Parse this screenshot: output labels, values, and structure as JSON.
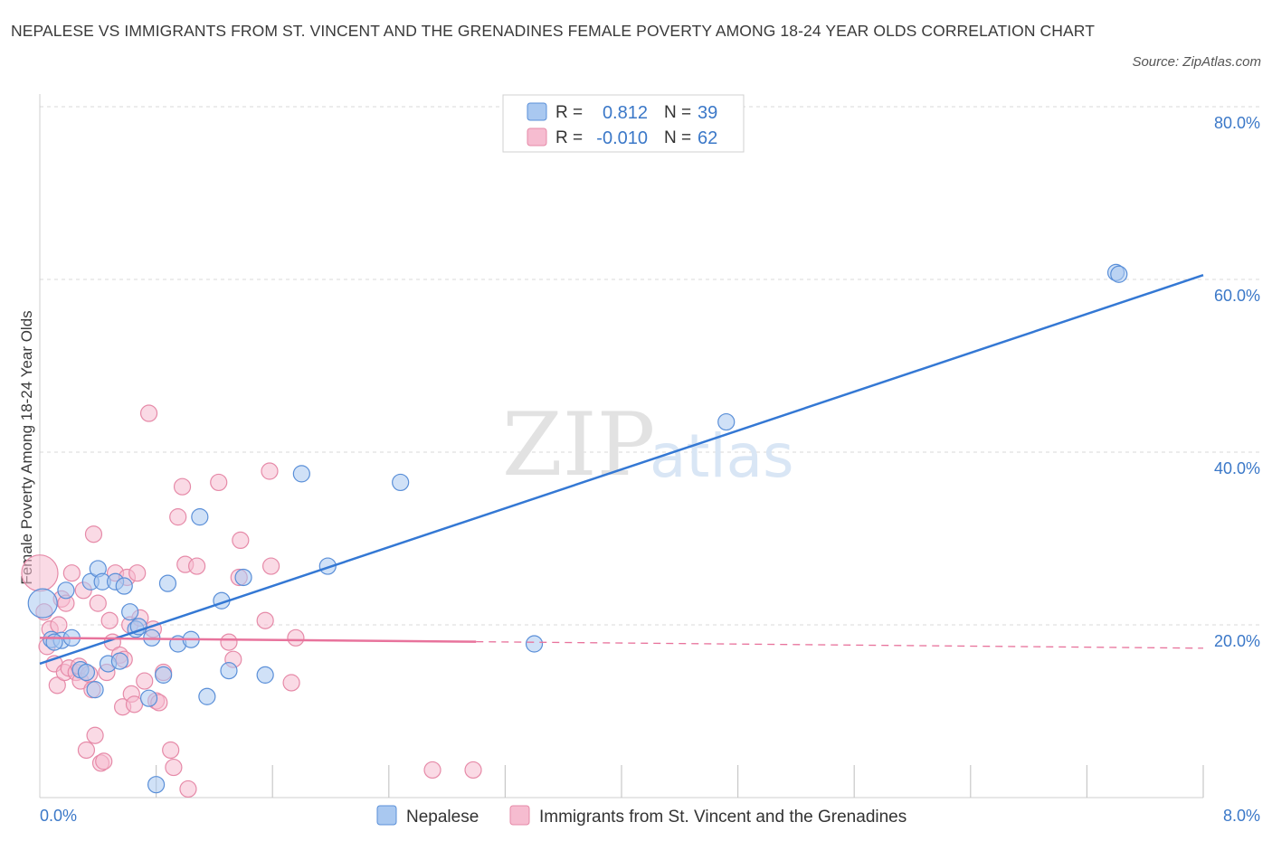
{
  "title": "NEPALESE VS IMMIGRANTS FROM ST. VINCENT AND THE GRENADINES FEMALE POVERTY AMONG 18-24 YEAR OLDS CORRELATION CHART",
  "source": "Source: ZipAtlas.com",
  "watermark": {
    "zip": "ZIP",
    "atlas": "atlas"
  },
  "colors": {
    "blue_fill": "#a9c8f0",
    "blue_stroke": "#5a8fd8",
    "blue_line": "#3478d4",
    "pink_fill": "#f6bcd0",
    "pink_stroke": "#e68aa8",
    "pink_line": "#e8739c",
    "grid": "#d8d8d8",
    "axis_text": "#3b78c8"
  },
  "legend": {
    "r_label": "R =",
    "n_label": "N =",
    "series": [
      {
        "r": "0.812",
        "n": "39"
      },
      {
        "r": "-0.010",
        "n": "62"
      }
    ]
  },
  "chart_data": {
    "type": "scatter",
    "title": "NEPALESE VS IMMIGRANTS FROM ST. VINCENT AND THE GRENADINES FEMALE POVERTY AMONG 18-24 YEAR OLDS CORRELATION CHART",
    "xlabel": "",
    "ylabel": "Female Poverty Among 18-24 Year Olds",
    "xlim": [
      0,
      8
    ],
    "ylim": [
      0,
      80
    ],
    "x_tick_labels": [
      "0.0%",
      "8.0%"
    ],
    "y_ticks": [
      20,
      40,
      60,
      80
    ],
    "y_tick_labels": [
      "20.0%",
      "40.0%",
      "60.0%",
      "80.0%"
    ],
    "grid": true,
    "legend_position": "top-center",
    "series": [
      {
        "name": "Nepalese",
        "color": "blue",
        "trend": {
          "x": [
            0.0,
            8.0
          ],
          "y": [
            15.5,
            60.5
          ],
          "dashed_from": null
        },
        "points": [
          {
            "x": 0.02,
            "y": 22.5,
            "s": 16
          },
          {
            "x": 0.08,
            "y": 18.3,
            "s": 9
          },
          {
            "x": 0.15,
            "y": 18.2,
            "s": 9
          },
          {
            "x": 0.18,
            "y": 24.0,
            "s": 9
          },
          {
            "x": 0.22,
            "y": 18.5,
            "s": 9
          },
          {
            "x": 0.28,
            "y": 14.8,
            "s": 9
          },
          {
            "x": 0.32,
            "y": 14.5,
            "s": 9
          },
          {
            "x": 0.35,
            "y": 25.0,
            "s": 9
          },
          {
            "x": 0.38,
            "y": 12.5,
            "s": 9
          },
          {
            "x": 0.4,
            "y": 26.5,
            "s": 9
          },
          {
            "x": 0.43,
            "y": 25.0,
            "s": 9
          },
          {
            "x": 0.47,
            "y": 15.5,
            "s": 9
          },
          {
            "x": 0.52,
            "y": 25.0,
            "s": 9
          },
          {
            "x": 0.55,
            "y": 15.8,
            "s": 9
          },
          {
            "x": 0.58,
            "y": 24.5,
            "s": 9
          },
          {
            "x": 0.62,
            "y": 21.5,
            "s": 9
          },
          {
            "x": 0.66,
            "y": 19.5,
            "s": 9
          },
          {
            "x": 0.68,
            "y": 19.8,
            "s": 9
          },
          {
            "x": 0.75,
            "y": 11.5,
            "s": 9
          },
          {
            "x": 0.77,
            "y": 18.5,
            "s": 9
          },
          {
            "x": 0.8,
            "y": 1.5,
            "s": 9
          },
          {
            "x": 0.85,
            "y": 14.2,
            "s": 9
          },
          {
            "x": 0.88,
            "y": 24.8,
            "s": 9
          },
          {
            "x": 0.95,
            "y": 17.8,
            "s": 9
          },
          {
            "x": 1.04,
            "y": 18.3,
            "s": 9
          },
          {
            "x": 1.1,
            "y": 32.5,
            "s": 9
          },
          {
            "x": 1.15,
            "y": 11.7,
            "s": 9
          },
          {
            "x": 1.25,
            "y": 22.8,
            "s": 9
          },
          {
            "x": 1.3,
            "y": 14.7,
            "s": 9
          },
          {
            "x": 1.4,
            "y": 25.5,
            "s": 9
          },
          {
            "x": 1.55,
            "y": 14.2,
            "s": 9
          },
          {
            "x": 1.8,
            "y": 37.5,
            "s": 9
          },
          {
            "x": 1.98,
            "y": 26.8,
            "s": 9
          },
          {
            "x": 2.48,
            "y": 36.5,
            "s": 9
          },
          {
            "x": 3.4,
            "y": 17.8,
            "s": 9
          },
          {
            "x": 4.72,
            "y": 43.5,
            "s": 9
          },
          {
            "x": 7.4,
            "y": 60.8,
            "s": 9
          },
          {
            "x": 7.42,
            "y": 60.6,
            "s": 9
          },
          {
            "x": 0.1,
            "y": 18.0,
            "s": 9
          }
        ]
      },
      {
        "name": "Immigrants from St. Vincent and the Grenadines",
        "color": "pink",
        "trend": {
          "x": [
            0.0,
            8.0
          ],
          "y": [
            18.5,
            17.3
          ],
          "dashed_from": 3.0
        },
        "points": [
          {
            "x": 0.0,
            "y": 26.0,
            "s": 20
          },
          {
            "x": 0.03,
            "y": 21.5,
            "s": 9
          },
          {
            "x": 0.05,
            "y": 17.5,
            "s": 9
          },
          {
            "x": 0.07,
            "y": 19.5,
            "s": 9
          },
          {
            "x": 0.1,
            "y": 15.5,
            "s": 9
          },
          {
            "x": 0.12,
            "y": 13.0,
            "s": 9
          },
          {
            "x": 0.13,
            "y": 20.0,
            "s": 9
          },
          {
            "x": 0.15,
            "y": 23.0,
            "s": 9
          },
          {
            "x": 0.17,
            "y": 14.5,
            "s": 9
          },
          {
            "x": 0.18,
            "y": 22.5,
            "s": 9
          },
          {
            "x": 0.2,
            "y": 15.0,
            "s": 9
          },
          {
            "x": 0.22,
            "y": 26.0,
            "s": 9
          },
          {
            "x": 0.25,
            "y": 14.5,
            "s": 9
          },
          {
            "x": 0.27,
            "y": 15.2,
            "s": 9
          },
          {
            "x": 0.28,
            "y": 13.5,
            "s": 9
          },
          {
            "x": 0.3,
            "y": 24.0,
            "s": 9
          },
          {
            "x": 0.32,
            "y": 5.5,
            "s": 9
          },
          {
            "x": 0.34,
            "y": 14.3,
            "s": 9
          },
          {
            "x": 0.36,
            "y": 12.5,
            "s": 9
          },
          {
            "x": 0.37,
            "y": 30.5,
            "s": 9
          },
          {
            "x": 0.38,
            "y": 7.2,
            "s": 9
          },
          {
            "x": 0.4,
            "y": 22.5,
            "s": 9
          },
          {
            "x": 0.42,
            "y": 4.0,
            "s": 9
          },
          {
            "x": 0.44,
            "y": 4.2,
            "s": 9
          },
          {
            "x": 0.46,
            "y": 14.5,
            "s": 9
          },
          {
            "x": 0.48,
            "y": 20.5,
            "s": 9
          },
          {
            "x": 0.5,
            "y": 18.0,
            "s": 9
          },
          {
            "x": 0.52,
            "y": 26.0,
            "s": 9
          },
          {
            "x": 0.55,
            "y": 16.5,
            "s": 9
          },
          {
            "x": 0.57,
            "y": 10.5,
            "s": 9
          },
          {
            "x": 0.58,
            "y": 16.0,
            "s": 9
          },
          {
            "x": 0.6,
            "y": 25.5,
            "s": 9
          },
          {
            "x": 0.62,
            "y": 20.0,
            "s": 9
          },
          {
            "x": 0.63,
            "y": 12.0,
            "s": 9
          },
          {
            "x": 0.65,
            "y": 10.8,
            "s": 9
          },
          {
            "x": 0.67,
            "y": 26.0,
            "s": 9
          },
          {
            "x": 0.69,
            "y": 20.8,
            "s": 9
          },
          {
            "x": 0.72,
            "y": 13.5,
            "s": 9
          },
          {
            "x": 0.75,
            "y": 44.5,
            "s": 9
          },
          {
            "x": 0.78,
            "y": 19.5,
            "s": 9
          },
          {
            "x": 0.8,
            "y": 11.2,
            "s": 9
          },
          {
            "x": 0.82,
            "y": 11.0,
            "s": 9
          },
          {
            "x": 0.85,
            "y": 14.5,
            "s": 9
          },
          {
            "x": 0.9,
            "y": 5.5,
            "s": 9
          },
          {
            "x": 0.92,
            "y": 3.5,
            "s": 9
          },
          {
            "x": 0.95,
            "y": 32.5,
            "s": 9
          },
          {
            "x": 0.98,
            "y": 36.0,
            "s": 9
          },
          {
            "x": 1.0,
            "y": 27.0,
            "s": 9
          },
          {
            "x": 1.02,
            "y": 1.0,
            "s": 9
          },
          {
            "x": 1.08,
            "y": 26.8,
            "s": 9
          },
          {
            "x": 1.23,
            "y": 36.5,
            "s": 9
          },
          {
            "x": 1.3,
            "y": 18.0,
            "s": 9
          },
          {
            "x": 1.33,
            "y": 16.0,
            "s": 9
          },
          {
            "x": 1.37,
            "y": 25.5,
            "s": 9
          },
          {
            "x": 1.38,
            "y": 29.8,
            "s": 9
          },
          {
            "x": 1.55,
            "y": 20.5,
            "s": 9
          },
          {
            "x": 1.58,
            "y": 37.8,
            "s": 9
          },
          {
            "x": 1.59,
            "y": 26.8,
            "s": 9
          },
          {
            "x": 1.73,
            "y": 13.3,
            "s": 9
          },
          {
            "x": 1.76,
            "y": 18.5,
            "s": 9
          },
          {
            "x": 2.7,
            "y": 3.2,
            "s": 9
          },
          {
            "x": 2.98,
            "y": 3.2,
            "s": 9
          }
        ]
      }
    ]
  }
}
